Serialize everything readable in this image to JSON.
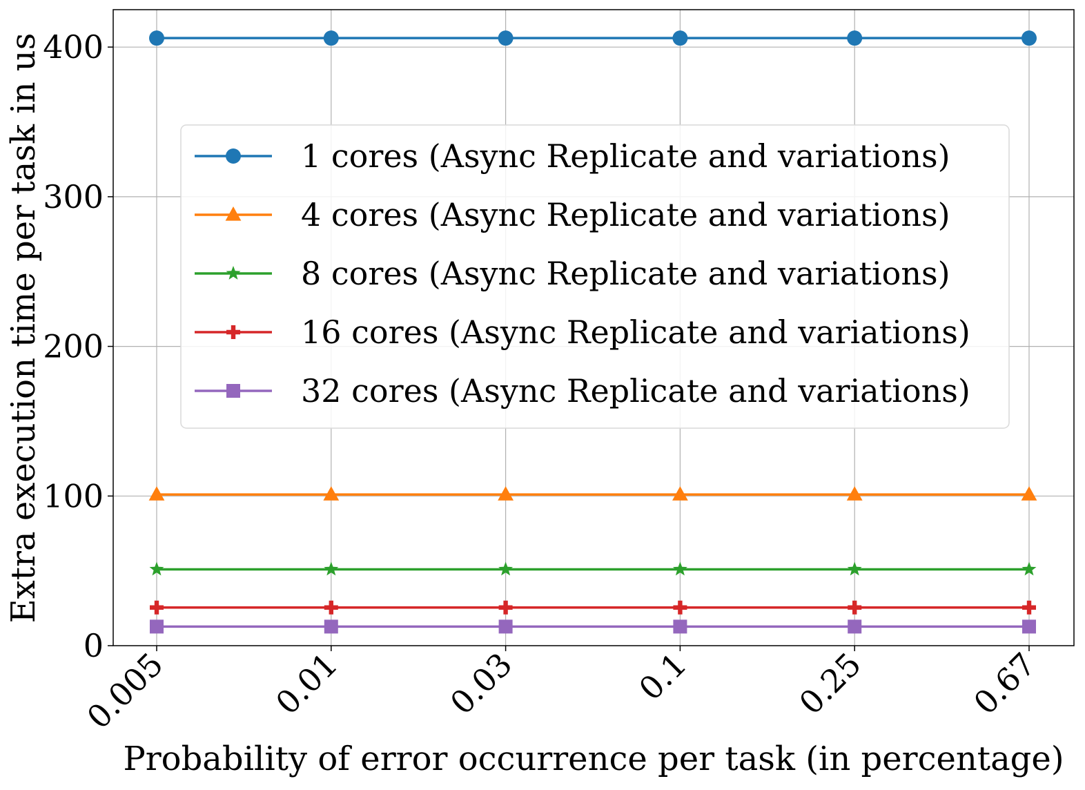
{
  "chart_data": {
    "type": "line",
    "categories": [
      "0.005",
      "0.01",
      "0.03",
      "0.1",
      "0.25",
      "0.67"
    ],
    "xlabel": "Probability of error occurrence per task (in percentage)",
    "ylabel": "Extra execution time per task in us",
    "ylim": [
      0,
      425
    ],
    "yticks": [
      "0",
      "100",
      "200",
      "300",
      "400"
    ],
    "grid": true,
    "legend_position": "center",
    "series": [
      {
        "name": "1 cores (Async Replicate and variations)",
        "color": "#1f77b4",
        "marker": "circle",
        "values": [
          406,
          406,
          406,
          406,
          406,
          406
        ]
      },
      {
        "name": "4 cores (Async Replicate and variations)",
        "color": "#ff7f0e",
        "marker": "triangle",
        "values": [
          101,
          101,
          101,
          101,
          101,
          101
        ]
      },
      {
        "name": "8 cores (Async Replicate and variations)",
        "color": "#2ca02c",
        "marker": "star",
        "values": [
          51,
          51,
          51,
          51,
          51,
          51
        ]
      },
      {
        "name": "16 cores (Async Replicate and variations)",
        "color": "#d62728",
        "marker": "plus",
        "values": [
          25.5,
          25.5,
          25.5,
          25.5,
          25.5,
          25.5
        ]
      },
      {
        "name": "32 cores (Async Replicate and variations)",
        "color": "#9467bd",
        "marker": "square",
        "values": [
          12.75,
          12.75,
          12.75,
          12.75,
          12.75,
          12.75
        ]
      }
    ]
  }
}
